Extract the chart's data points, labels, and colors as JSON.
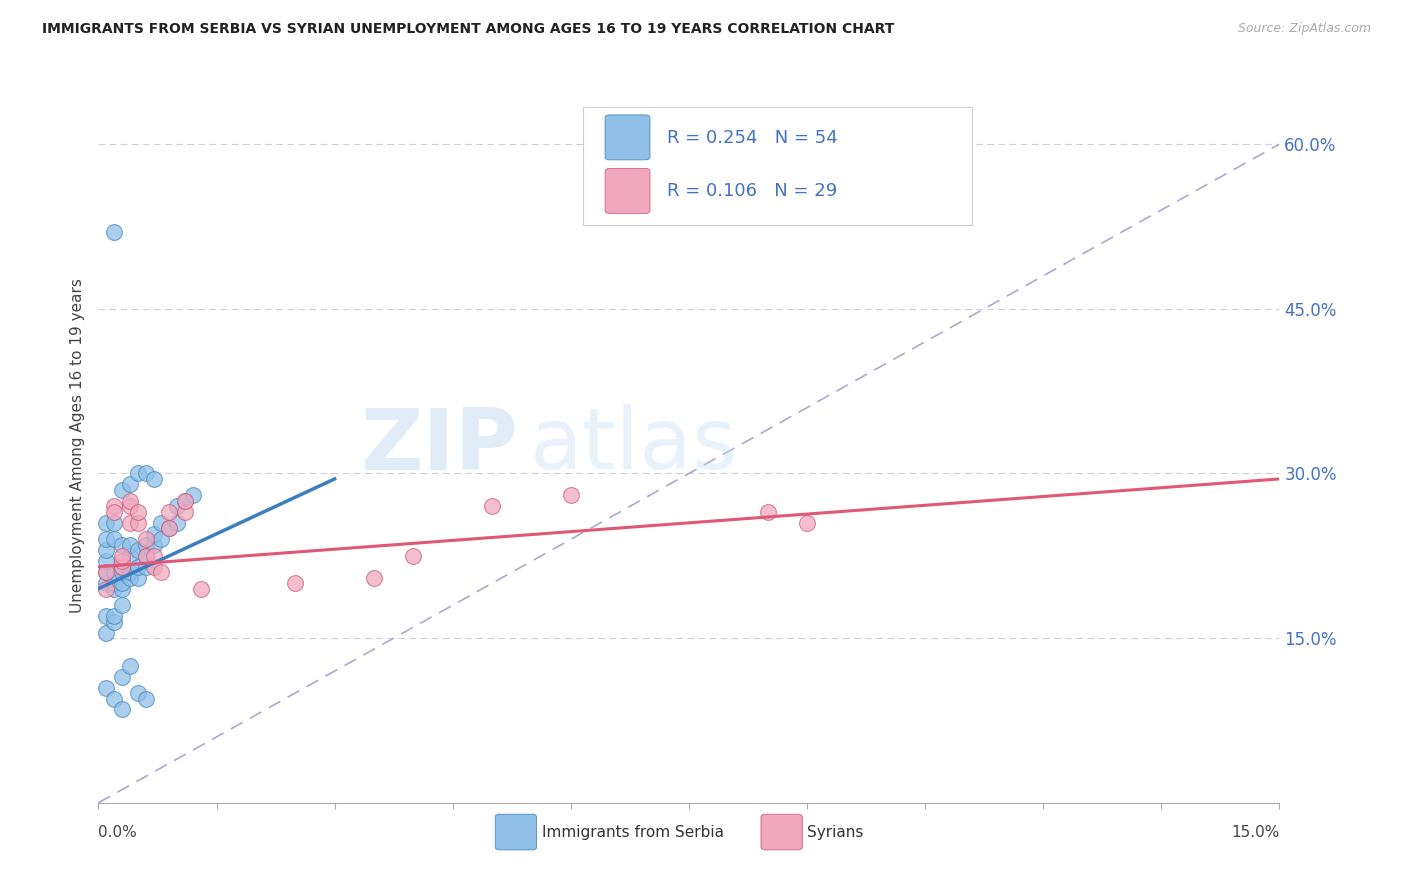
{
  "title": "IMMIGRANTS FROM SERBIA VS SYRIAN UNEMPLOYMENT AMONG AGES 16 TO 19 YEARS CORRELATION CHART",
  "source": "Source: ZipAtlas.com",
  "ylabel": "Unemployment Among Ages 16 to 19 years",
  "right_yticks": [
    0.15,
    0.3,
    0.45,
    0.6
  ],
  "right_ytick_labels": [
    "15.0%",
    "30.0%",
    "45.0%",
    "60.0%"
  ],
  "xlim": [
    0,
    0.15
  ],
  "ylim": [
    0.0,
    0.65
  ],
  "serbia_color": "#90bfe8",
  "serbia_edge": "#4a8cc0",
  "syria_color": "#f0a8be",
  "syria_edge": "#d06080",
  "serbia_line_color": "#3a7ec0",
  "syria_line_color": "#e05878",
  "ref_line_color": "#aaaacc",
  "grid_color": "#ccccdd",
  "serbia_x": [
    0.001,
    0.001,
    0.001,
    0.001,
    0.001,
    0.001,
    0.002,
    0.002,
    0.002,
    0.002,
    0.002,
    0.003,
    0.003,
    0.003,
    0.003,
    0.003,
    0.004,
    0.004,
    0.004,
    0.004,
    0.005,
    0.005,
    0.005,
    0.006,
    0.006,
    0.006,
    0.007,
    0.007,
    0.008,
    0.008,
    0.009,
    0.01,
    0.01,
    0.011,
    0.012,
    0.001,
    0.001,
    0.002,
    0.002,
    0.003,
    0.001,
    0.002,
    0.003,
    0.003,
    0.004,
    0.005,
    0.006,
    0.002,
    0.003,
    0.004,
    0.005,
    0.006,
    0.007
  ],
  "serbia_y": [
    0.2,
    0.21,
    0.22,
    0.23,
    0.24,
    0.255,
    0.195,
    0.2,
    0.21,
    0.24,
    0.255,
    0.195,
    0.2,
    0.21,
    0.215,
    0.235,
    0.205,
    0.21,
    0.225,
    0.235,
    0.205,
    0.215,
    0.23,
    0.215,
    0.225,
    0.235,
    0.235,
    0.245,
    0.24,
    0.255,
    0.25,
    0.255,
    0.27,
    0.275,
    0.28,
    0.17,
    0.155,
    0.165,
    0.17,
    0.18,
    0.105,
    0.095,
    0.085,
    0.115,
    0.125,
    0.1,
    0.095,
    0.52,
    0.285,
    0.29,
    0.3,
    0.3,
    0.295
  ],
  "syria_x": [
    0.001,
    0.001,
    0.002,
    0.002,
    0.003,
    0.003,
    0.003,
    0.004,
    0.004,
    0.004,
    0.005,
    0.005,
    0.006,
    0.006,
    0.007,
    0.007,
    0.008,
    0.009,
    0.009,
    0.011,
    0.011,
    0.05,
    0.06,
    0.085,
    0.09,
    0.035,
    0.04,
    0.025,
    0.013
  ],
  "syria_y": [
    0.195,
    0.21,
    0.27,
    0.265,
    0.215,
    0.22,
    0.225,
    0.27,
    0.275,
    0.255,
    0.255,
    0.265,
    0.225,
    0.24,
    0.215,
    0.225,
    0.21,
    0.265,
    0.25,
    0.265,
    0.275,
    0.27,
    0.28,
    0.265,
    0.255,
    0.205,
    0.225,
    0.2,
    0.195
  ],
  "fig_width": 14.06,
  "fig_height": 8.92,
  "dpi": 100
}
